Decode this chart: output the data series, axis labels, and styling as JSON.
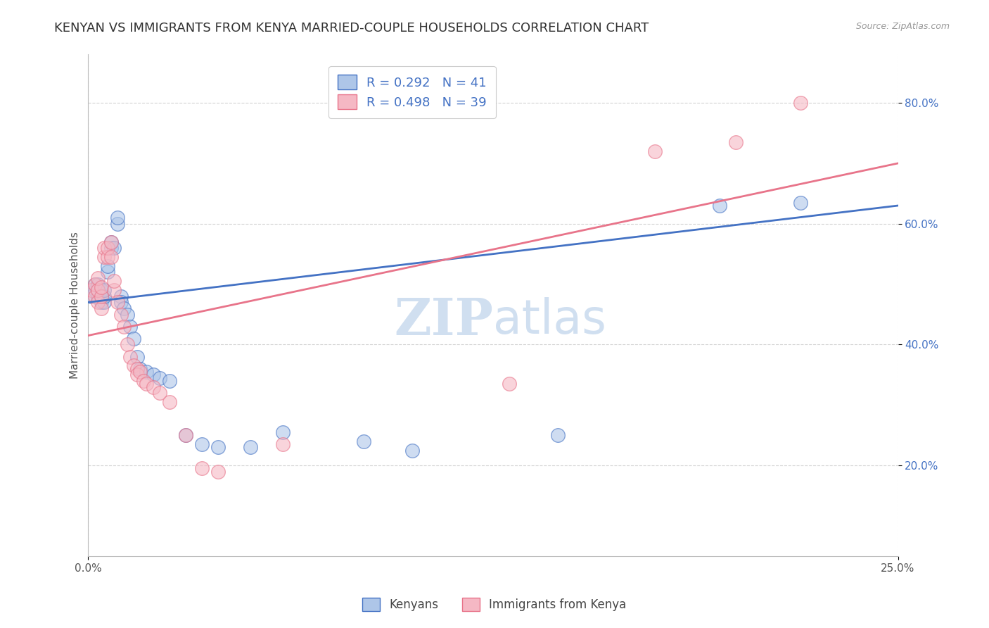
{
  "title": "KENYAN VS IMMIGRANTS FROM KENYA MARRIED-COUPLE HOUSEHOLDS CORRELATION CHART",
  "source": "Source: ZipAtlas.com",
  "ylabel": "Married-couple Households",
  "yticks": [
    "20.0%",
    "40.0%",
    "60.0%",
    "80.0%"
  ],
  "ytick_vals": [
    0.2,
    0.4,
    0.6,
    0.8
  ],
  "xmin": 0.0,
  "xmax": 0.25,
  "ymin": 0.05,
  "ymax": 0.88,
  "R1": 0.292,
  "N1": 41,
  "R2": 0.498,
  "N2": 39,
  "blue_line_y0": 0.47,
  "blue_line_y1": 0.63,
  "pink_line_y0": 0.415,
  "pink_line_y1": 0.7,
  "scatter_blue": [
    [
      0.001,
      0.48
    ],
    [
      0.002,
      0.49
    ],
    [
      0.002,
      0.5
    ],
    [
      0.003,
      0.48
    ],
    [
      0.003,
      0.49
    ],
    [
      0.003,
      0.5
    ],
    [
      0.004,
      0.47
    ],
    [
      0.004,
      0.48
    ],
    [
      0.004,
      0.49
    ],
    [
      0.005,
      0.47
    ],
    [
      0.005,
      0.48
    ],
    [
      0.005,
      0.49
    ],
    [
      0.006,
      0.52
    ],
    [
      0.006,
      0.53
    ],
    [
      0.007,
      0.56
    ],
    [
      0.007,
      0.57
    ],
    [
      0.008,
      0.56
    ],
    [
      0.009,
      0.6
    ],
    [
      0.009,
      0.61
    ],
    [
      0.01,
      0.48
    ],
    [
      0.01,
      0.47
    ],
    [
      0.011,
      0.46
    ],
    [
      0.012,
      0.45
    ],
    [
      0.013,
      0.43
    ],
    [
      0.014,
      0.41
    ],
    [
      0.015,
      0.38
    ],
    [
      0.016,
      0.36
    ],
    [
      0.018,
      0.355
    ],
    [
      0.02,
      0.35
    ],
    [
      0.022,
      0.345
    ],
    [
      0.025,
      0.34
    ],
    [
      0.03,
      0.25
    ],
    [
      0.035,
      0.235
    ],
    [
      0.04,
      0.23
    ],
    [
      0.05,
      0.23
    ],
    [
      0.06,
      0.255
    ],
    [
      0.085,
      0.24
    ],
    [
      0.1,
      0.225
    ],
    [
      0.145,
      0.25
    ],
    [
      0.195,
      0.63
    ],
    [
      0.22,
      0.635
    ]
  ],
  "scatter_pink": [
    [
      0.001,
      0.49
    ],
    [
      0.002,
      0.48
    ],
    [
      0.002,
      0.5
    ],
    [
      0.003,
      0.47
    ],
    [
      0.003,
      0.49
    ],
    [
      0.003,
      0.51
    ],
    [
      0.004,
      0.46
    ],
    [
      0.004,
      0.48
    ],
    [
      0.004,
      0.495
    ],
    [
      0.005,
      0.545
    ],
    [
      0.005,
      0.56
    ],
    [
      0.006,
      0.545
    ],
    [
      0.006,
      0.56
    ],
    [
      0.007,
      0.545
    ],
    [
      0.007,
      0.57
    ],
    [
      0.008,
      0.49
    ],
    [
      0.008,
      0.505
    ],
    [
      0.009,
      0.47
    ],
    [
      0.01,
      0.45
    ],
    [
      0.011,
      0.43
    ],
    [
      0.012,
      0.4
    ],
    [
      0.013,
      0.38
    ],
    [
      0.014,
      0.365
    ],
    [
      0.015,
      0.36
    ],
    [
      0.015,
      0.35
    ],
    [
      0.016,
      0.355
    ],
    [
      0.017,
      0.34
    ],
    [
      0.018,
      0.335
    ],
    [
      0.02,
      0.33
    ],
    [
      0.022,
      0.32
    ],
    [
      0.025,
      0.305
    ],
    [
      0.03,
      0.25
    ],
    [
      0.035,
      0.195
    ],
    [
      0.04,
      0.19
    ],
    [
      0.06,
      0.235
    ],
    [
      0.13,
      0.335
    ],
    [
      0.175,
      0.72
    ],
    [
      0.2,
      0.735
    ],
    [
      0.22,
      0.8
    ]
  ],
  "watermark_zip": "ZIP",
  "watermark_atlas": "atlas",
  "blue_line_color": "#4472C4",
  "pink_line_color": "#E8748A",
  "scatter_blue_color": "#AEC6E8",
  "scatter_pink_color": "#F5B8C4",
  "grid_color": "#C8C8C8",
  "background_color": "#FFFFFF",
  "title_fontsize": 13,
  "axis_label_fontsize": 11,
  "tick_fontsize": 11,
  "watermark_fontsize_zip": 52,
  "watermark_fontsize_atlas": 48,
  "watermark_color": "#D0DFF0",
  "legend_text_color": "#4472C4",
  "ytick_color": "#4472C4"
}
